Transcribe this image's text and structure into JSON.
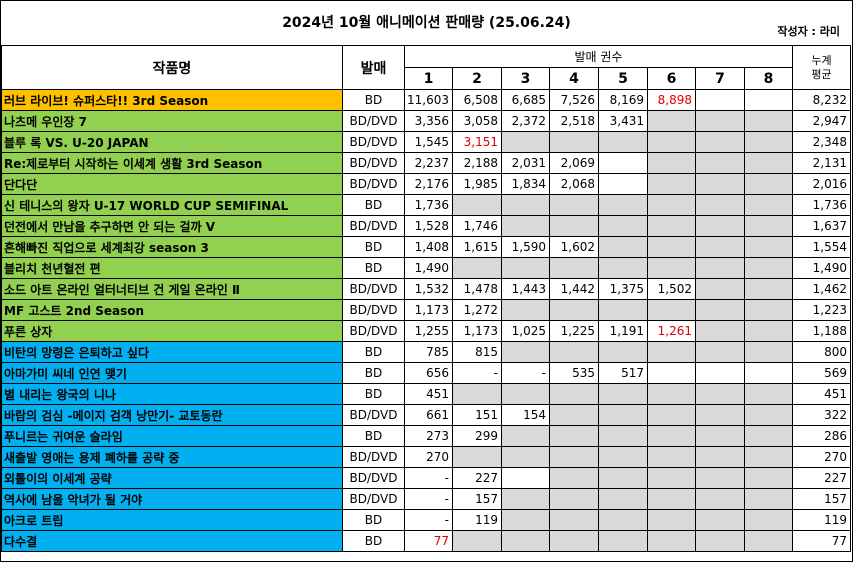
{
  "header": {
    "title": "2024년 10월 애니메이션 판매량 (25.06.24)",
    "author": "작성자 : 라미"
  },
  "columns": {
    "title": "작품명",
    "format": "발매",
    "volumes_group": "발매 권수",
    "volumes": [
      "1",
      "2",
      "3",
      "4",
      "5",
      "6",
      "7",
      "8"
    ],
    "avg": "누계\n평균"
  },
  "colors": {
    "orange": "#ffc000",
    "green": "#92d050",
    "blue": "#00b0f0",
    "gray": "#d9d9d9",
    "red": "#e00000"
  },
  "rows": [
    {
      "title": "러브 라이브! 슈퍼스타!! 3rd Season",
      "format": "BD",
      "vols": [
        "11,603",
        "6,508",
        "6,685",
        "7,526",
        "8,169",
        "8,898",
        null,
        null
      ],
      "red": [
        5
      ],
      "avg": "8,232",
      "group": "orange",
      "cells": 8
    },
    {
      "title": "나츠메 우인장 7",
      "format": "BD/DVD",
      "vols": [
        "3,356",
        "3,058",
        "2,372",
        "2,518",
        "3,431",
        null,
        null,
        null
      ],
      "red": [],
      "avg": "2,947",
      "group": "green",
      "cells": 5
    },
    {
      "title": "블루 록 VS. U-20 JAPAN",
      "format": "BD/DVD",
      "vols": [
        "1,545",
        "3,151",
        null,
        null,
        null,
        null,
        null,
        null
      ],
      "red": [
        1
      ],
      "avg": "2,348",
      "group": "green",
      "cells": 2
    },
    {
      "title": "Re:제로부터 시작하는 이세계 생활 3rd Season",
      "format": "BD/DVD",
      "vols": [
        "2,237",
        "2,188",
        "2,031",
        "2,069",
        null,
        null,
        null,
        null
      ],
      "red": [],
      "avg": "2,131",
      "group": "green",
      "cells": 5
    },
    {
      "title": "단다단",
      "format": "BD/DVD",
      "vols": [
        "2,176",
        "1,985",
        "1,834",
        "2,068",
        null,
        null,
        null,
        null
      ],
      "red": [],
      "avg": "2,016",
      "group": "green",
      "cells": 5
    },
    {
      "title": "신 테니스의 왕자 U-17 WORLD CUP SEMIFINAL",
      "format": "BD",
      "vols": [
        "1,736",
        null,
        null,
        null,
        null,
        null,
        null,
        null
      ],
      "red": [],
      "avg": "1,736",
      "group": "green",
      "cells": 1
    },
    {
      "title": "던전에서 만남을 추구하면 안 되는 걸까 V",
      "format": "BD/DVD",
      "vols": [
        "1,528",
        "1,746",
        null,
        null,
        null,
        null,
        null,
        null
      ],
      "red": [],
      "avg": "1,637",
      "group": "green",
      "cells": 2
    },
    {
      "title": "흔해빠진 직업으로 세계최강 season 3",
      "format": "BD",
      "vols": [
        "1,408",
        "1,615",
        "1,590",
        "1,602",
        null,
        null,
        null,
        null
      ],
      "red": [],
      "avg": "1,554",
      "group": "green",
      "cells": 4
    },
    {
      "title": "블리치 천년혈전 편",
      "format": "BD",
      "vols": [
        "1,490",
        null,
        null,
        null,
        null,
        null,
        null,
        null
      ],
      "red": [],
      "avg": "1,490",
      "group": "green",
      "cells": 1
    },
    {
      "title": "소드 아트 온라인 얼터너티브 건 게일 온라인 Ⅱ",
      "format": "BD/DVD",
      "vols": [
        "1,532",
        "1,478",
        "1,443",
        "1,442",
        "1,375",
        "1,502",
        null,
        null
      ],
      "red": [],
      "avg": "1,462",
      "group": "green",
      "cells": 6
    },
    {
      "title": "MF 고스트 2nd Season",
      "format": "BD/DVD",
      "vols": [
        "1,173",
        "1,272",
        null,
        null,
        null,
        null,
        null,
        null
      ],
      "red": [],
      "avg": "1,223",
      "group": "green",
      "cells": 2
    },
    {
      "title": "푸른 상자",
      "format": "BD/DVD",
      "vols": [
        "1,255",
        "1,173",
        "1,025",
        "1,225",
        "1,191",
        "1,261",
        null,
        null
      ],
      "red": [
        5
      ],
      "avg": "1,188",
      "group": "green",
      "cells": 6
    },
    {
      "title": "비탄의 망령은 은퇴하고 싶다",
      "format": "BD",
      "vols": [
        "785",
        "815",
        null,
        null,
        null,
        null,
        null,
        null
      ],
      "red": [],
      "avg": "800",
      "group": "blue",
      "cells": 2
    },
    {
      "title": "아마가미 씨네 인연 맺기",
      "format": "BD",
      "vols": [
        "656",
        "-",
        "-",
        "535",
        "517",
        null,
        null,
        null
      ],
      "red": [],
      "avg": "569",
      "group": "blue",
      "cells": 8
    },
    {
      "title": "별 내리는 왕국의 니나",
      "format": "BD",
      "vols": [
        "451",
        null,
        null,
        null,
        null,
        null,
        null,
        null
      ],
      "red": [],
      "avg": "451",
      "group": "blue",
      "cells": 1
    },
    {
      "title": "바람의 검심 -메이지 검객 낭만기- 교토동란",
      "format": "BD/DVD",
      "vols": [
        "661",
        "151",
        "154",
        null,
        null,
        null,
        null,
        null
      ],
      "red": [],
      "avg": "322",
      "group": "blue",
      "cells": 3
    },
    {
      "title": "푸니르는 귀여운 슬라임",
      "format": "BD",
      "vols": [
        "273",
        "299",
        null,
        null,
        null,
        null,
        null,
        null
      ],
      "red": [],
      "avg": "286",
      "group": "blue",
      "cells": 2
    },
    {
      "title": "새출발 영애는 용제 폐하를 공략 중",
      "format": "BD/DVD",
      "vols": [
        "270",
        null,
        null,
        null,
        null,
        null,
        null,
        null
      ],
      "red": [],
      "avg": "270",
      "group": "blue",
      "cells": 1
    },
    {
      "title": "외톨이의 이세계 공략",
      "format": "BD/DVD",
      "vols": [
        "-",
        "227",
        null,
        null,
        null,
        null,
        null,
        null
      ],
      "red": [],
      "avg": "227",
      "group": "blue",
      "cells": 3
    },
    {
      "title": "역사에 남을 악녀가 될 거야",
      "format": "BD/DVD",
      "vols": [
        "-",
        "157",
        null,
        null,
        null,
        null,
        null,
        null
      ],
      "red": [],
      "avg": "157",
      "group": "blue",
      "cells": 2
    },
    {
      "title": "아크로 트립",
      "format": "BD",
      "vols": [
        "-",
        "119",
        null,
        null,
        null,
        null,
        null,
        null
      ],
      "red": [],
      "avg": "119",
      "group": "blue",
      "cells": 2
    },
    {
      "title": "다수결",
      "format": "BD",
      "vols": [
        "77",
        null,
        null,
        null,
        null,
        null,
        null,
        null
      ],
      "red": [
        0
      ],
      "avg": "77",
      "group": "blue",
      "cells": 1
    }
  ]
}
